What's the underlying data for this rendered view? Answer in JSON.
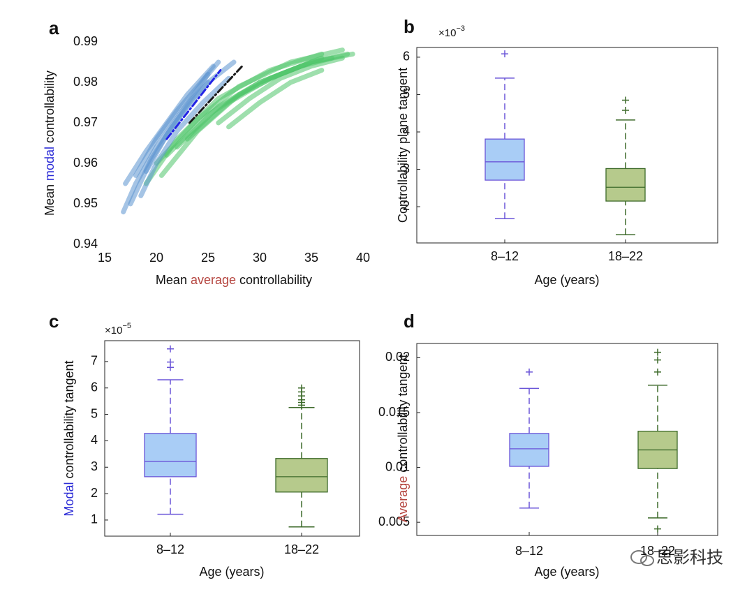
{
  "chart_data": [
    {
      "type": "line",
      "panel": "a",
      "xlabel": [
        {
          "text": "Mean"
        },
        {
          "text": "average",
          "color": "#b5453f"
        },
        {
          "text": "controllability"
        }
      ],
      "ylabel": [
        {
          "text": "Mean"
        },
        {
          "text": "modal",
          "color": "#2a2ad6"
        },
        {
          "text": "controllability"
        }
      ],
      "xlim": [
        15,
        40
      ],
      "xticks": [
        15,
        20,
        25,
        30,
        35,
        40
      ],
      "ylim": [
        0.94,
        0.99
      ],
      "yticks": [
        0.94,
        0.95,
        0.96,
        0.97,
        0.98,
        0.99
      ],
      "series": [
        {
          "color": "#4fc46a",
          "style": "bundle",
          "x": [
            19,
            22,
            26,
            31,
            36
          ],
          "values": [
            0.955,
            0.966,
            0.976,
            0.983,
            0.987
          ]
        },
        {
          "color": "#4fc46a",
          "style": "bundle",
          "x": [
            20,
            24,
            28,
            33,
            38
          ],
          "values": [
            0.96,
            0.971,
            0.979,
            0.985,
            0.988
          ]
        },
        {
          "color": "#4fc46a",
          "style": "bundle",
          "x": [
            21,
            25,
            30,
            35,
            39
          ],
          "values": [
            0.962,
            0.972,
            0.98,
            0.985,
            0.987
          ]
        },
        {
          "color": "#4fc46a",
          "style": "bundle",
          "x": [
            22,
            26,
            30,
            34,
            37
          ],
          "values": [
            0.964,
            0.974,
            0.98,
            0.984,
            0.986
          ]
        },
        {
          "color": "#4fc46a",
          "style": "bundle",
          "x": [
            20.5,
            24,
            28,
            32,
            36
          ],
          "values": [
            0.957,
            0.968,
            0.977,
            0.982,
            0.986
          ]
        },
        {
          "color": "#4fc46a",
          "style": "bundle",
          "x": [
            23,
            27,
            31,
            35,
            38.5
          ],
          "values": [
            0.966,
            0.975,
            0.981,
            0.985,
            0.987
          ]
        },
        {
          "color": "#4fc46a",
          "style": "bundle",
          "x": [
            26,
            29,
            32,
            35,
            38
          ],
          "values": [
            0.97,
            0.976,
            0.981,
            0.984,
            0.986
          ]
        },
        {
          "color": "#4fc46a",
          "style": "bundle",
          "x": [
            27,
            30,
            33,
            36
          ],
          "values": [
            0.969,
            0.975,
            0.98,
            0.983
          ]
        },
        {
          "color": "#5b93cf",
          "style": "bundle",
          "x": [
            16.8,
            18,
            20,
            22.5,
            25
          ],
          "values": [
            0.948,
            0.955,
            0.964,
            0.973,
            0.982
          ]
        },
        {
          "color": "#5b93cf",
          "style": "bundle",
          "x": [
            17,
            19,
            21,
            23,
            25.5
          ],
          "values": [
            0.955,
            0.963,
            0.97,
            0.977,
            0.984
          ]
        },
        {
          "color": "#5b93cf",
          "style": "bundle",
          "x": [
            18,
            20,
            22,
            24,
            26
          ],
          "values": [
            0.957,
            0.966,
            0.973,
            0.979,
            0.985
          ]
        },
        {
          "color": "#5b93cf",
          "style": "bundle",
          "x": [
            18.5,
            20,
            22,
            24.5,
            27
          ],
          "values": [
            0.952,
            0.96,
            0.968,
            0.975,
            0.981
          ]
        },
        {
          "color": "#5b93cf",
          "style": "bundle",
          "x": [
            17.5,
            19.5,
            21.5,
            23.5,
            25
          ],
          "values": [
            0.95,
            0.961,
            0.969,
            0.976,
            0.98
          ]
        },
        {
          "color": "#5b93cf",
          "style": "bundle",
          "x": [
            19,
            21,
            23,
            25,
            27.5
          ],
          "values": [
            0.958,
            0.967,
            0.974,
            0.98,
            0.985
          ]
        },
        {
          "color": "#2323e6",
          "style": "dashdot",
          "x": [
            21,
            26.2
          ],
          "values": [
            0.966,
            0.983
          ]
        },
        {
          "color": "#1a1a1a",
          "style": "dashdot",
          "x": [
            23.2,
            28.3
          ],
          "values": [
            0.97,
            0.984
          ]
        }
      ]
    },
    {
      "type": "box",
      "panel": "b",
      "multiplier": {
        "base": "×10",
        "exponent": "−3"
      },
      "xlabel": [
        {
          "text": "Age (years)"
        }
      ],
      "ylabel": [
        {
          "text": "Controllability plane tangent"
        }
      ],
      "categories": [
        "8–12",
        "18–22"
      ],
      "ylim": [
        1.03,
        6.26
      ],
      "yticks": [
        2,
        3,
        4,
        5,
        6
      ],
      "boxes": [
        {
          "whislo": 1.68,
          "q1": 2.71,
          "med": 3.2,
          "q3": 3.81,
          "whishi": 5.44,
          "fliers": [
            6.09
          ],
          "color": "#a9cdf6",
          "edge": "#6a55d8"
        },
        {
          "whislo": 1.25,
          "q1": 2.15,
          "med": 2.52,
          "q3": 3.02,
          "whishi": 4.32,
          "fliers": [
            4.58,
            4.85
          ],
          "color": "#b6ca8c",
          "edge": "#3d6a2a"
        }
      ]
    },
    {
      "type": "box",
      "panel": "c",
      "multiplier": {
        "base": "×10",
        "exponent": "−5"
      },
      "xlabel": [
        {
          "text": "Age (years)"
        }
      ],
      "ylabel": [
        {
          "text": "Modal",
          "color": "#2a2ad6"
        },
        {
          "text": "controllability"
        },
        {
          "text": "tangent"
        }
      ],
      "categories": [
        "8–12",
        "18–22"
      ],
      "ylim": [
        0.39,
        7.79
      ],
      "yticks": [
        1,
        2,
        3,
        4,
        5,
        6,
        7
      ],
      "boxes": [
        {
          "whislo": 1.22,
          "q1": 2.64,
          "med": 3.22,
          "q3": 4.28,
          "whishi": 6.31,
          "fliers": [
            6.78,
            6.98,
            7.48
          ],
          "color": "#a9cdf6",
          "edge": "#6a55d8"
        },
        {
          "whislo": 0.74,
          "q1": 2.06,
          "med": 2.64,
          "q3": 3.33,
          "whishi": 5.26,
          "fliers": [
            5.35,
            5.45,
            5.55,
            5.7,
            5.85,
            6.0
          ],
          "color": "#b6ca8c",
          "edge": "#3d6a2a"
        }
      ]
    },
    {
      "type": "box",
      "panel": "d",
      "xlabel": [
        {
          "text": "Age (years)"
        }
      ],
      "ylabel": [
        {
          "text": "Average",
          "color": "#b5453f"
        },
        {
          "text": "controllability"
        },
        {
          "text": "tangent"
        }
      ],
      "categories": [
        "8–12",
        "18–22"
      ],
      "ylim": [
        0.0038,
        0.0213
      ],
      "yticks": [
        0.005,
        0.01,
        0.015,
        0.02
      ],
      "boxes": [
        {
          "whislo": 0.0063,
          "q1": 0.0101,
          "med": 0.0117,
          "q3": 0.0131,
          "whishi": 0.0172,
          "fliers": [
            0.0187
          ],
          "color": "#a9cdf6",
          "edge": "#6a55d8"
        },
        {
          "whislo": 0.0054,
          "q1": 0.0099,
          "med": 0.0116,
          "q3": 0.0133,
          "whishi": 0.0175,
          "fliers": [
            0.0044,
            0.0187,
            0.0198,
            0.0205
          ],
          "color": "#b6ca8c",
          "edge": "#3d6a2a"
        }
      ]
    }
  ],
  "watermark": "思影科技"
}
